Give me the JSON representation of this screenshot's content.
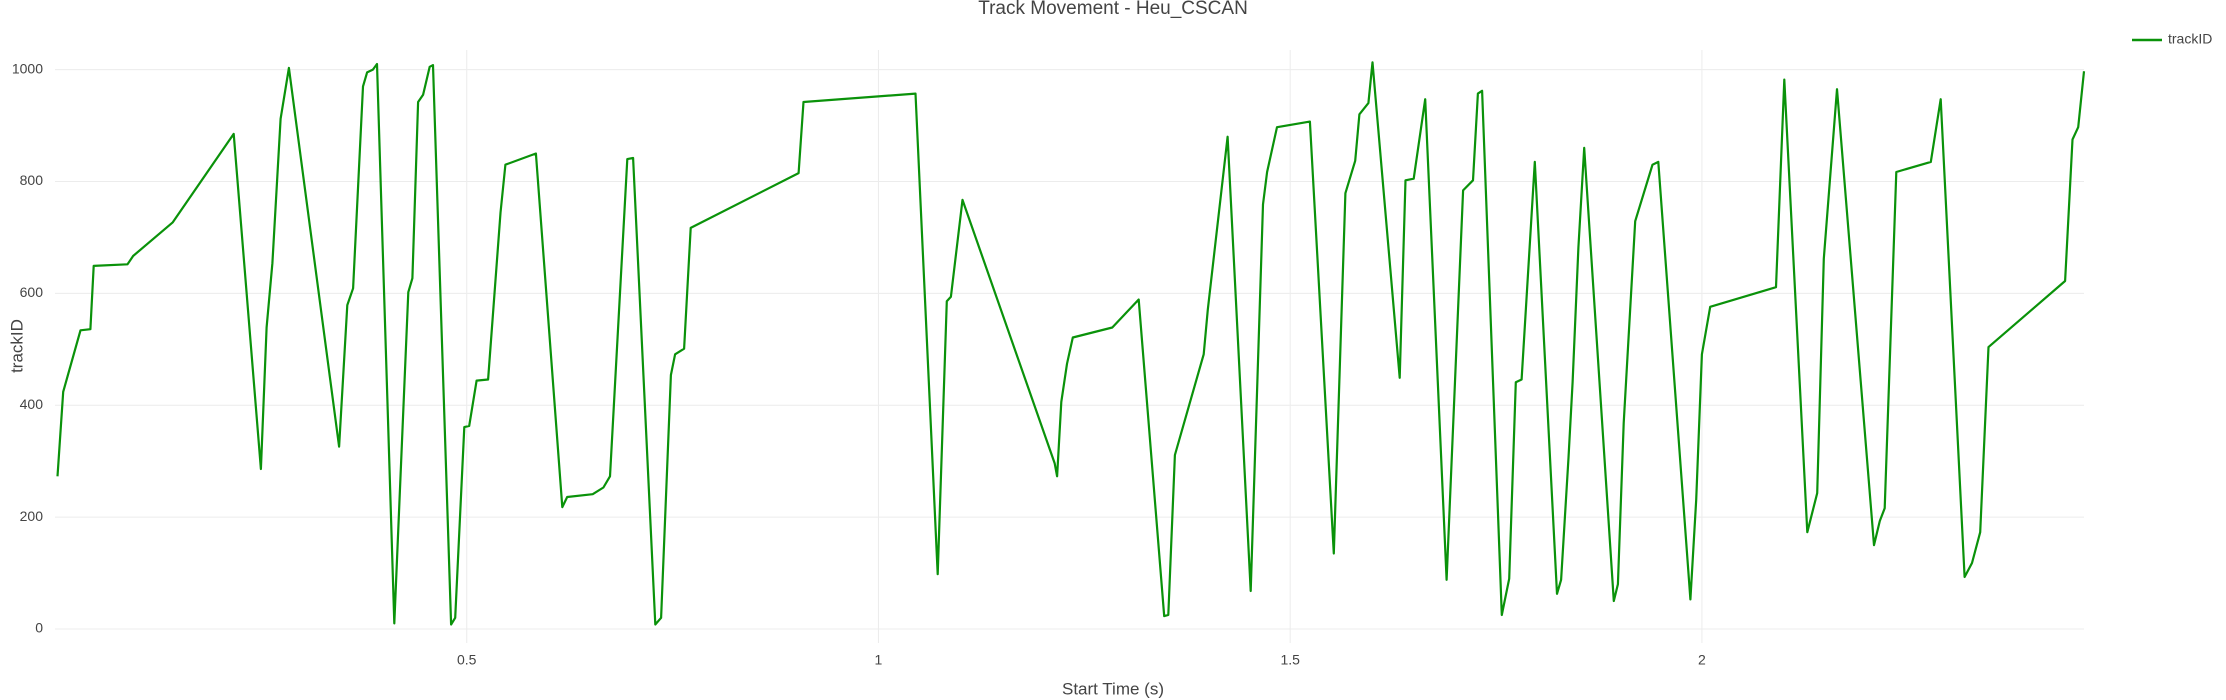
{
  "chart_data": {
    "type": "line",
    "title": "Track Movement - Heu_CSCAN",
    "x_label": "Start Time (s)",
    "y_label": "trackID",
    "x": [
      0.003,
      0.01,
      0.031,
      0.043,
      0.047,
      0.088,
      0.095,
      0.143,
      0.217,
      0.25,
      0.257,
      0.264,
      0.274,
      0.284,
      0.345,
      0.355,
      0.362,
      0.374,
      0.379,
      0.386,
      0.391,
      0.412,
      0.429,
      0.434,
      0.441,
      0.447,
      0.455,
      0.459,
      0.481,
      0.486,
      0.497,
      0.503,
      0.512,
      0.526,
      0.541,
      0.547,
      0.584,
      0.616,
      0.622,
      0.653,
      0.666,
      0.674,
      0.695,
      0.702,
      0.729,
      0.736,
      0.748,
      0.753,
      0.764,
      0.772,
      0.903,
      0.909,
      1.045,
      1.072,
      1.083,
      1.088,
      1.102,
      1.214,
      1.217,
      1.222,
      1.229,
      1.236,
      1.284,
      1.316,
      1.347,
      1.352,
      1.36,
      1.395,
      1.4,
      1.424,
      1.452,
      1.467,
      1.472,
      1.484,
      1.524,
      1.553,
      1.567,
      1.579,
      1.584,
      1.595,
      1.6,
      1.633,
      1.64,
      1.65,
      1.664,
      1.69,
      1.71,
      1.722,
      1.728,
      1.733,
      1.757,
      1.766,
      1.774,
      1.781,
      1.797,
      1.824,
      1.829,
      1.838,
      1.843,
      1.85,
      1.857,
      1.893,
      1.898,
      1.905,
      1.919,
      1.94,
      1.947,
      1.986,
      1.993,
      2.0,
      2.01,
      2.09,
      2.1,
      2.128,
      2.14,
      2.148,
      2.164,
      2.209,
      2.216,
      2.222,
      2.236,
      2.278,
      2.29,
      2.319,
      2.328,
      2.338,
      2.348,
      2.441,
      2.45,
      2.457,
      2.464
    ],
    "series": [
      {
        "name": "trackID",
        "color": "#0a920a",
        "values": [
          273,
          424,
          534,
          536,
          649,
          652,
          667,
          727,
          885,
          286,
          539,
          654,
          912,
          1003,
          326,
          579,
          609,
          970,
          995,
          1000,
          1010,
          10,
          602,
          627,
          942,
          955,
          1005,
          1008,
          8,
          20,
          361,
          363,
          444,
          446,
          744,
          830,
          850,
          218,
          236,
          241,
          253,
          273,
          840,
          842,
          8,
          20,
          454,
          491,
          501,
          717,
          815,
          942,
          957,
          98,
          586,
          594,
          767,
          296,
          273,
          406,
          474,
          521,
          539,
          589,
          23,
          25,
          311,
          491,
          571,
          880,
          68,
          759,
          817,
          897,
          907,
          135,
          779,
          837,
          920,
          940,
          1013,
          449,
          802,
          805,
          947,
          88,
          784,
          802,
          957,
          962,
          25,
          90,
          441,
          446,
          835,
          63,
          88,
          306,
          441,
          682,
          860,
          50,
          80,
          368,
          729,
          830,
          835,
          53,
          231,
          491,
          576,
          611,
          982,
          173,
          243,
          662,
          965,
          150,
          193,
          216,
          817,
          835,
          947,
          93,
          118,
          173,
          504,
          622,
          875,
          897,
          997
        ]
      }
    ],
    "xlim": [
      0,
      2.464
    ],
    "ylim": [
      -25,
      1035
    ],
    "xticks": [
      0.5,
      1,
      1.5,
      2
    ],
    "yticks": [
      0,
      200,
      400,
      600,
      800,
      1000
    ],
    "grid": true,
    "legend": "top-right"
  }
}
